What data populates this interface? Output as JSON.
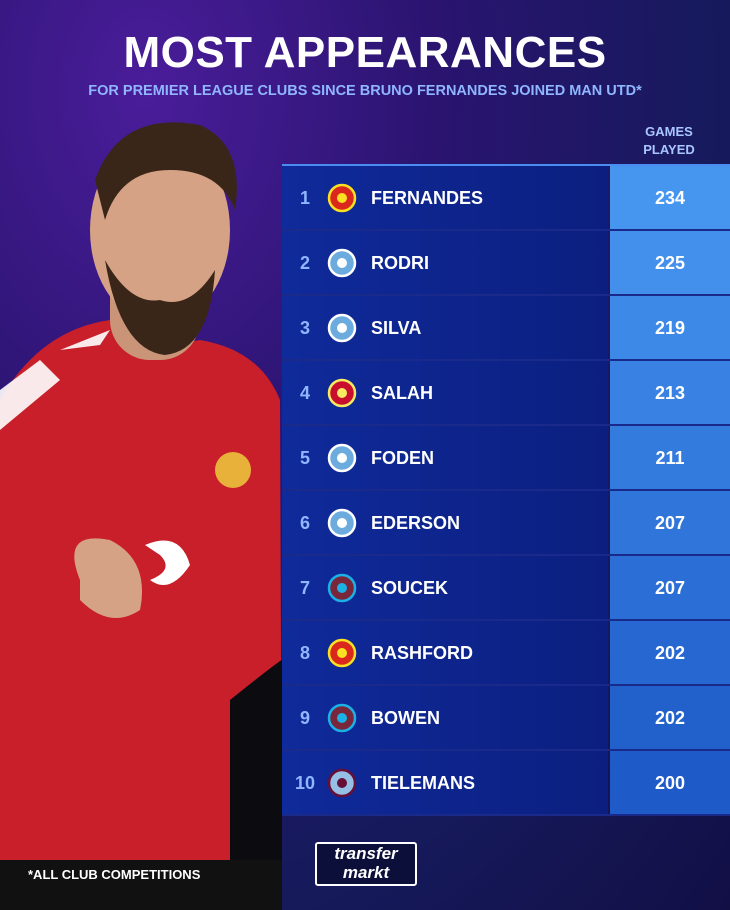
{
  "header": {
    "title": "MOST APPEARANCES",
    "subtitle": "FOR PREMIER LEAGUE CLUBS SINCE BRUNO FERNANDES JOINED MAN UTD*"
  },
  "table": {
    "column_header": "GAMES PLAYED",
    "rows": [
      [
        1,
        "FERNANDES",
        234
      ],
      [
        2,
        "RODRI",
        225
      ],
      [
        3,
        "SILVA",
        219
      ],
      [
        4,
        "SALAH",
        213
      ],
      [
        5,
        "FODEN",
        211
      ],
      [
        6,
        "EDERSON",
        207
      ],
      [
        7,
        "SOUCEK",
        207
      ],
      [
        8,
        "RASHFORD",
        202
      ],
      [
        9,
        "BOWEN",
        202
      ],
      [
        10,
        "TIELEMANS",
        200
      ]
    ]
  },
  "footnote": "*ALL CLUB COMPETITIONS",
  "logo": {
    "line1": "transfer",
    "line2": "markt"
  }
}
